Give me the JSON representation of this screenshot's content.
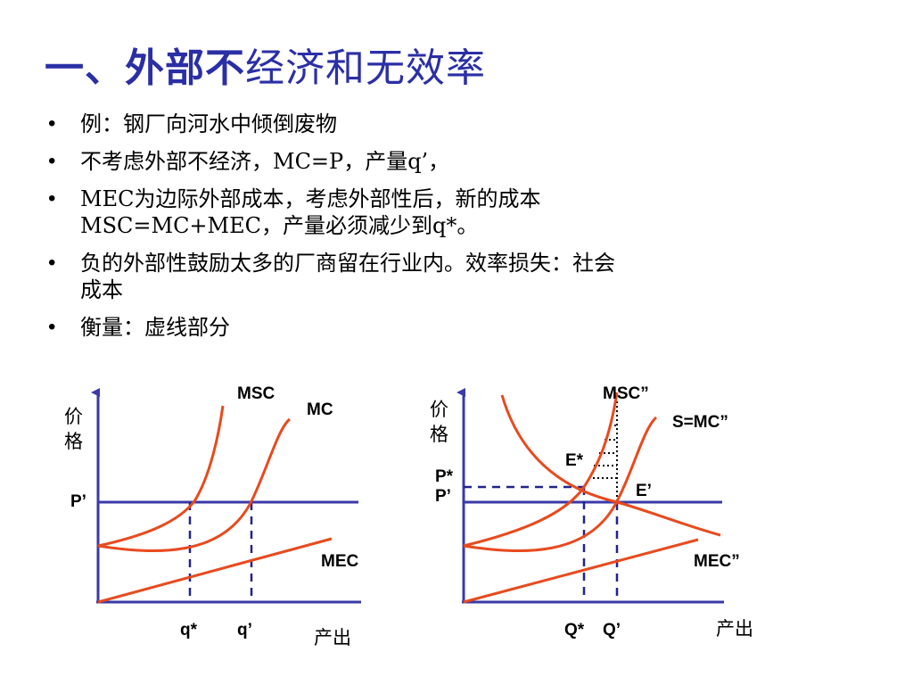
{
  "title": {
    "bold_part": "一、外部不",
    "rest_part": "经济和无效率"
  },
  "bullets": [
    {
      "text": "例：钢厂向河水中倾倒废物"
    },
    {
      "text": "不考虑外部不经济，MC=P，产量q’，"
    },
    {
      "line1": "MEC为边际外部成本，考虑外部性后，新的成本",
      "line2": "MSC=MC+MEC，产量必须减少到q*。"
    },
    {
      "line1": "负的外部性鼓励太多的厂商留在行业内。效率损失：社会",
      "line2": "成本"
    },
    {
      "text": "衡量：虚线部分"
    }
  ],
  "left_graph": {
    "y_axis_label_1": "价",
    "y_axis_label_2": "格",
    "x_axis_label": "产出",
    "price_label": "P’",
    "curves": {
      "msc": "MSC",
      "mc": "MC",
      "mec": "MEC"
    },
    "quantity_labels": {
      "q_star": "q*",
      "q_prime": "q’"
    }
  },
  "right_graph": {
    "y_axis_label_1": "价",
    "y_axis_label_2": "格",
    "x_axis_label": "产出",
    "price_labels": {
      "p_star": "P*",
      "p_prime": "P’"
    },
    "curves": {
      "msc": "MSC”",
      "supply": "S=MC”",
      "mec": "MEC”"
    },
    "points": {
      "e_star": "E*",
      "e_prime": "E’"
    },
    "quantity_labels": {
      "q_star": "Q*",
      "q_prime": "Q’"
    }
  },
  "colors": {
    "title": "#2b2fa5",
    "axis": "#3a3aa8",
    "curve": "#e84a1e",
    "dashed": "#23238c"
  }
}
